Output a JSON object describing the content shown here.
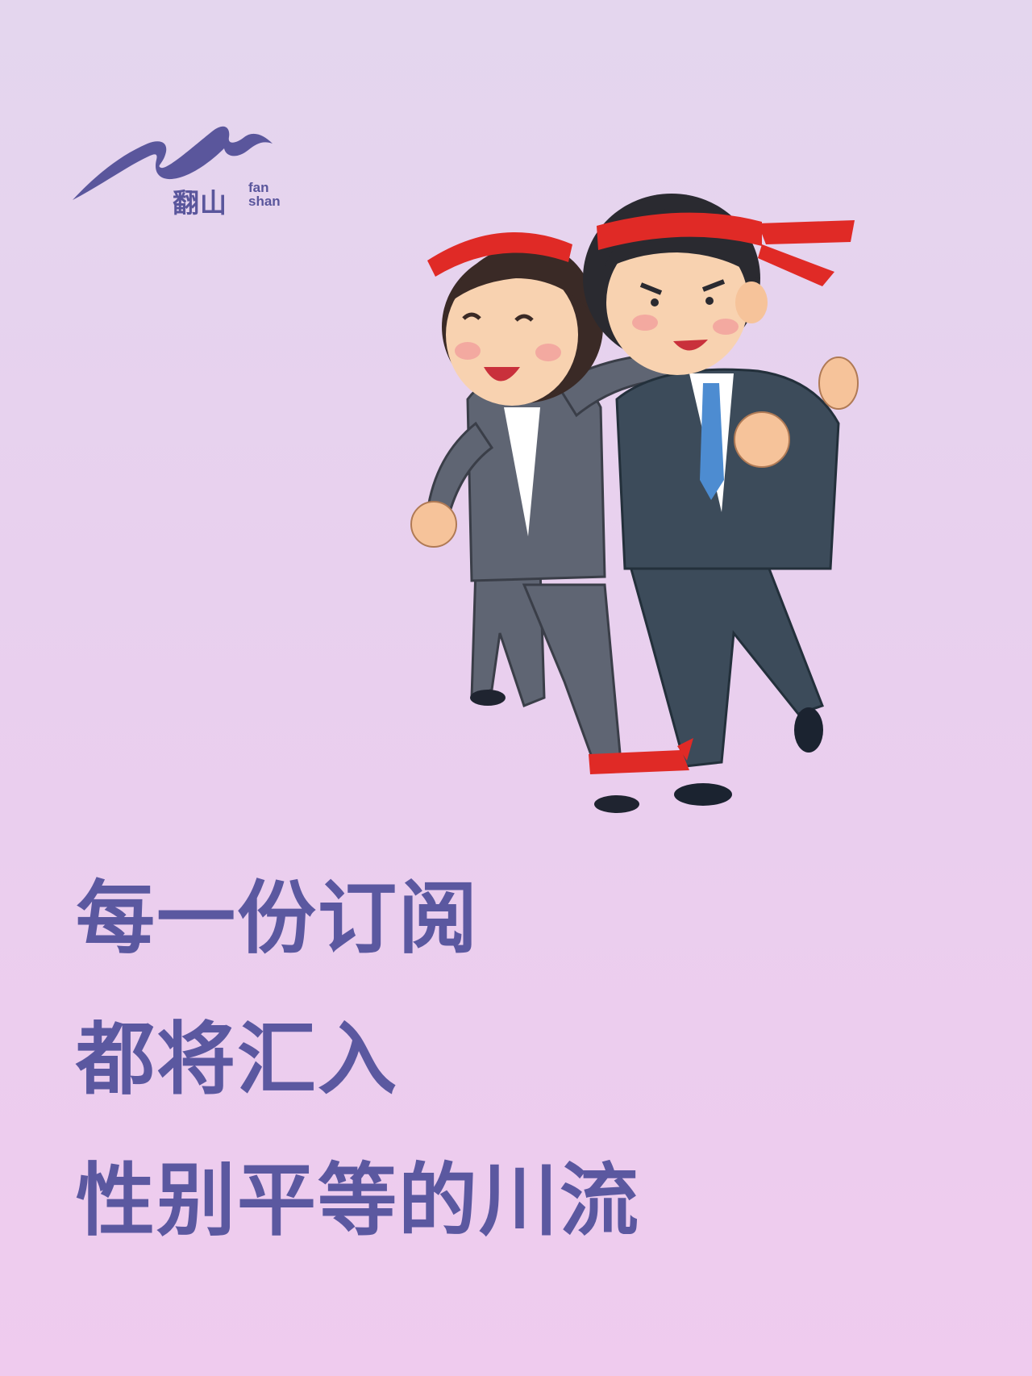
{
  "logo": {
    "name_cn": "翻山",
    "name_en_line1": "fan",
    "name_en_line2": "shan"
  },
  "illustration": {
    "description_icon": "two-runners-headbands-icon"
  },
  "headline": {
    "line1": "每一份订阅",
    "line2": "都将汇入",
    "line3": "性别平等的川流"
  },
  "colors": {
    "brand": "#5b58a0",
    "headband": "#e02a26",
    "background_top": "#e4d6ee",
    "background_bottom": "#efcbee"
  }
}
